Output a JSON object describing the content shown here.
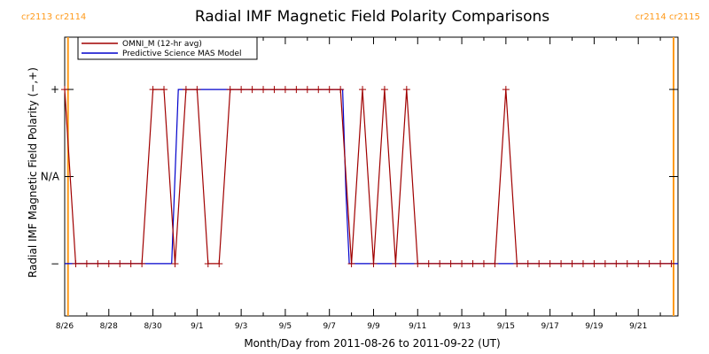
{
  "chart_data": {
    "type": "line",
    "title": "Radial IMF Magnetic Field Polarity Comparisons",
    "xlabel": "Month/Day from 2011-08-26 to 2011-09-22 (UT)",
    "ylabel": "Radial IMF Magnetic Field Polarity (−,+)",
    "x_unit": "days after 2011-08-26 00:00 UT",
    "xlim": [
      0,
      27.8
    ],
    "ylim": [
      -1.6,
      1.6
    ],
    "grid": false,
    "legend_position": "top-left",
    "y_ticks": [
      {
        "value": 1,
        "label": "+"
      },
      {
        "value": 0,
        "label": "N/A"
      },
      {
        "value": -1,
        "label": "−"
      }
    ],
    "x_ticks": [
      {
        "value": 0,
        "label": "8/26"
      },
      {
        "value": 2,
        "label": "8/28"
      },
      {
        "value": 4,
        "label": "8/30"
      },
      {
        "value": 6,
        "label": "9/1"
      },
      {
        "value": 8,
        "label": "9/3"
      },
      {
        "value": 10,
        "label": "9/5"
      },
      {
        "value": 12,
        "label": "9/7"
      },
      {
        "value": 14,
        "label": "9/9"
      },
      {
        "value": 16,
        "label": "9/11"
      },
      {
        "value": 18,
        "label": "9/13"
      },
      {
        "value": 20,
        "label": "9/15"
      },
      {
        "value": 22,
        "label": "9/17"
      },
      {
        "value": 24,
        "label": "9/19"
      },
      {
        "value": 26,
        "label": "9/21"
      }
    ],
    "carrington_markers": [
      {
        "x": 0.15,
        "label": "cr2113 cr2114",
        "align": "start"
      },
      {
        "x": 27.6,
        "label": "cr2114 cr2115",
        "align": "end"
      }
    ],
    "series": [
      {
        "name": "OMNI_M (12-hr avg)",
        "color": "#a00000",
        "markers": true,
        "points": [
          [
            0.0,
            1
          ],
          [
            0.5,
            -1
          ],
          [
            1.0,
            -1
          ],
          [
            1.5,
            -1
          ],
          [
            2.0,
            -1
          ],
          [
            2.5,
            -1
          ],
          [
            3.0,
            -1
          ],
          [
            3.5,
            -1
          ],
          [
            4.0,
            1
          ],
          [
            4.5,
            1
          ],
          [
            5.0,
            -1
          ],
          [
            5.5,
            1
          ],
          [
            6.0,
            1
          ],
          [
            6.5,
            -1
          ],
          [
            7.0,
            -1
          ],
          [
            7.5,
            1
          ],
          [
            8.0,
            1
          ],
          [
            8.5,
            1
          ],
          [
            9.0,
            1
          ],
          [
            9.5,
            1
          ],
          [
            10.0,
            1
          ],
          [
            10.5,
            1
          ],
          [
            11.0,
            1
          ],
          [
            11.5,
            1
          ],
          [
            12.0,
            1
          ],
          [
            12.5,
            1
          ],
          [
            13.0,
            -1
          ],
          [
            13.5,
            1
          ],
          [
            14.0,
            -1
          ],
          [
            14.5,
            1
          ],
          [
            15.0,
            -1
          ],
          [
            15.5,
            1
          ],
          [
            16.0,
            -1
          ],
          [
            16.5,
            -1
          ],
          [
            17.0,
            -1
          ],
          [
            17.5,
            -1
          ],
          [
            18.0,
            -1
          ],
          [
            18.5,
            -1
          ],
          [
            19.0,
            -1
          ],
          [
            19.5,
            -1
          ],
          [
            20.0,
            1
          ],
          [
            20.5,
            -1
          ],
          [
            21.0,
            -1
          ],
          [
            21.5,
            -1
          ],
          [
            22.0,
            -1
          ],
          [
            22.5,
            -1
          ],
          [
            23.0,
            -1
          ],
          [
            23.5,
            -1
          ],
          [
            24.0,
            -1
          ],
          [
            24.5,
            -1
          ],
          [
            25.0,
            -1
          ],
          [
            25.5,
            -1
          ],
          [
            26.0,
            -1
          ],
          [
            26.5,
            -1
          ],
          [
            27.0,
            -1
          ],
          [
            27.5,
            -1
          ]
        ]
      },
      {
        "name": "Predictive Science MAS Model",
        "color": "#0000cc",
        "markers": false,
        "points": [
          [
            0.0,
            -1
          ],
          [
            4.85,
            -1
          ],
          [
            5.15,
            1
          ],
          [
            12.6,
            1
          ],
          [
            12.75,
            -0.2
          ],
          [
            12.9,
            -1
          ],
          [
            27.8,
            -1
          ]
        ]
      }
    ]
  }
}
